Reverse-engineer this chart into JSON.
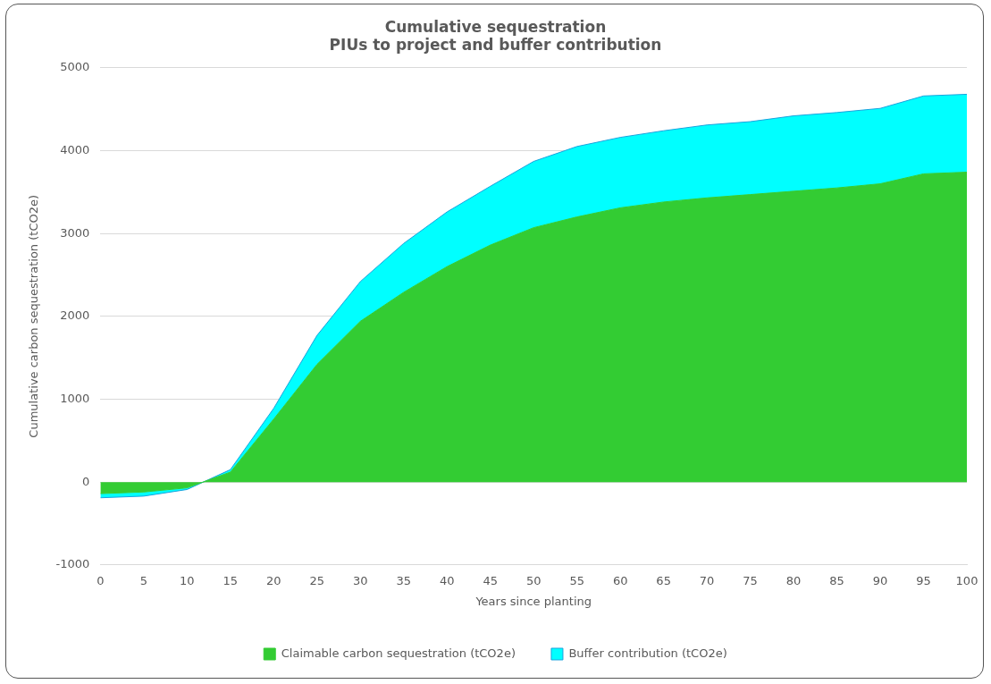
{
  "chart_data": {
    "type": "area",
    "title": "Cumulative sequestration",
    "subtitle": "PIUs to project and buffer contribution",
    "xlabel": "Years since planting",
    "ylabel": "Cumulative carbon sequestration (tCO2e)",
    "x": [
      0,
      5,
      10,
      15,
      20,
      25,
      30,
      35,
      40,
      45,
      50,
      55,
      60,
      65,
      70,
      75,
      80,
      85,
      90,
      95,
      100
    ],
    "series": [
      {
        "name": "Claimable carbon sequestration (tCO2e)",
        "color": "#33cc33",
        "values": [
          -140,
          -120,
          -70,
          120,
          760,
          1420,
          1940,
          2290,
          2600,
          2860,
          3070,
          3200,
          3310,
          3380,
          3430,
          3470,
          3510,
          3550,
          3600,
          3720,
          3740
        ]
      },
      {
        "name": "Buffer contribution (tCO2e)",
        "color": "#00ffff",
        "values": [
          -50,
          -50,
          -20,
          30,
          130,
          350,
          480,
          590,
          660,
          710,
          800,
          850,
          850,
          860,
          880,
          880,
          910,
          910,
          910,
          940,
          940
        ]
      }
    ],
    "stacked": true,
    "xlim": [
      0,
      100
    ],
    "xticks": [
      0,
      5,
      10,
      15,
      20,
      25,
      30,
      35,
      40,
      45,
      50,
      55,
      60,
      65,
      70,
      75,
      80,
      85,
      90,
      95,
      100
    ],
    "ylim": [
      -1000,
      5000
    ],
    "yticks": [
      -1000,
      0,
      1000,
      2000,
      3000,
      4000,
      5000
    ],
    "grid": "y",
    "legend": "bottom"
  }
}
